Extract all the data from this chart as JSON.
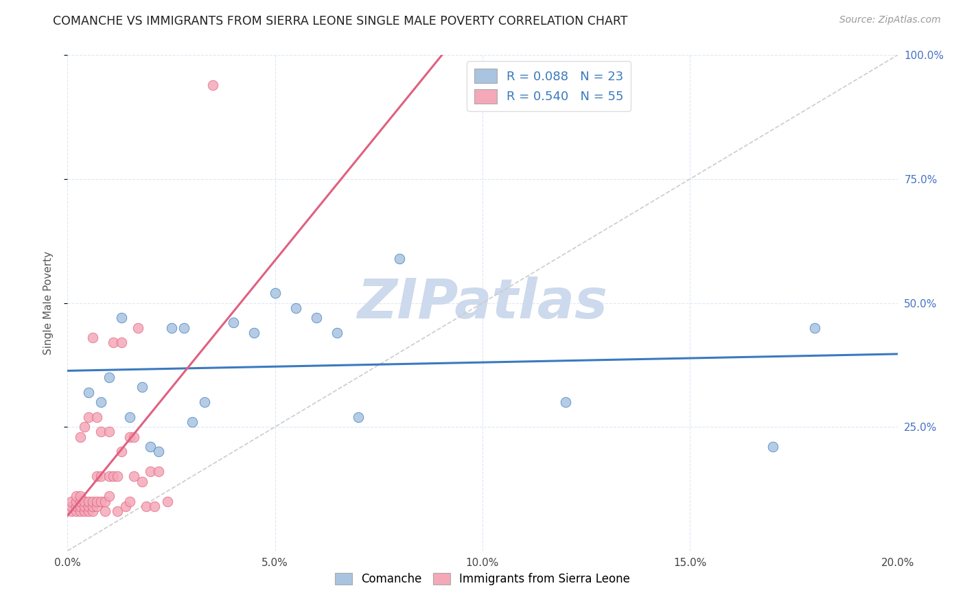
{
  "title": "COMANCHE VS IMMIGRANTS FROM SIERRA LEONE SINGLE MALE POVERTY CORRELATION CHART",
  "source": "Source: ZipAtlas.com",
  "ylabel": "Single Male Poverty",
  "xlim": [
    0.0,
    0.2
  ],
  "ylim": [
    0.0,
    1.0
  ],
  "xtick_labels": [
    "0.0%",
    "5.0%",
    "10.0%",
    "15.0%",
    "20.0%"
  ],
  "xtick_vals": [
    0.0,
    0.05,
    0.1,
    0.15,
    0.2
  ],
  "ytick_labels": [
    "25.0%",
    "50.0%",
    "75.0%",
    "100.0%"
  ],
  "ytick_vals": [
    0.25,
    0.5,
    0.75,
    1.0
  ],
  "comanche_R": 0.088,
  "comanche_N": 23,
  "sierra_leone_R": 0.54,
  "sierra_leone_N": 55,
  "comanche_color": "#a8c4e0",
  "comanche_line_color": "#3a7abf",
  "sierra_leone_color": "#f4a8b8",
  "sierra_leone_line_color": "#e06080",
  "legend_R_color": "#3a7abf",
  "watermark_color": "#cdd9ec",
  "comanche_x": [
    0.005,
    0.008,
    0.01,
    0.013,
    0.015,
    0.018,
    0.02,
    0.022,
    0.025,
    0.028,
    0.03,
    0.033,
    0.04,
    0.045,
    0.05,
    0.055,
    0.06,
    0.065,
    0.07,
    0.08,
    0.12,
    0.17,
    0.18
  ],
  "comanche_y": [
    0.32,
    0.3,
    0.35,
    0.47,
    0.27,
    0.33,
    0.21,
    0.2,
    0.45,
    0.45,
    0.26,
    0.3,
    0.46,
    0.44,
    0.52,
    0.49,
    0.47,
    0.44,
    0.27,
    0.59,
    0.3,
    0.21,
    0.45
  ],
  "sierra_leone_x": [
    0.001,
    0.001,
    0.001,
    0.002,
    0.002,
    0.002,
    0.002,
    0.003,
    0.003,
    0.003,
    0.003,
    0.003,
    0.004,
    0.004,
    0.004,
    0.004,
    0.005,
    0.005,
    0.005,
    0.005,
    0.006,
    0.006,
    0.006,
    0.006,
    0.007,
    0.007,
    0.007,
    0.007,
    0.008,
    0.008,
    0.008,
    0.009,
    0.009,
    0.01,
    0.01,
    0.01,
    0.011,
    0.011,
    0.012,
    0.012,
    0.013,
    0.013,
    0.014,
    0.015,
    0.015,
    0.016,
    0.016,
    0.017,
    0.018,
    0.019,
    0.02,
    0.021,
    0.022,
    0.024,
    0.035
  ],
  "sierra_leone_y": [
    0.08,
    0.09,
    0.1,
    0.08,
    0.09,
    0.1,
    0.11,
    0.08,
    0.09,
    0.1,
    0.11,
    0.23,
    0.08,
    0.09,
    0.1,
    0.25,
    0.08,
    0.09,
    0.1,
    0.27,
    0.08,
    0.09,
    0.1,
    0.43,
    0.09,
    0.1,
    0.15,
    0.27,
    0.1,
    0.15,
    0.24,
    0.08,
    0.1,
    0.11,
    0.15,
    0.24,
    0.15,
    0.42,
    0.08,
    0.15,
    0.2,
    0.42,
    0.09,
    0.1,
    0.23,
    0.15,
    0.23,
    0.45,
    0.14,
    0.09,
    0.16,
    0.09,
    0.16,
    0.1,
    0.94
  ]
}
